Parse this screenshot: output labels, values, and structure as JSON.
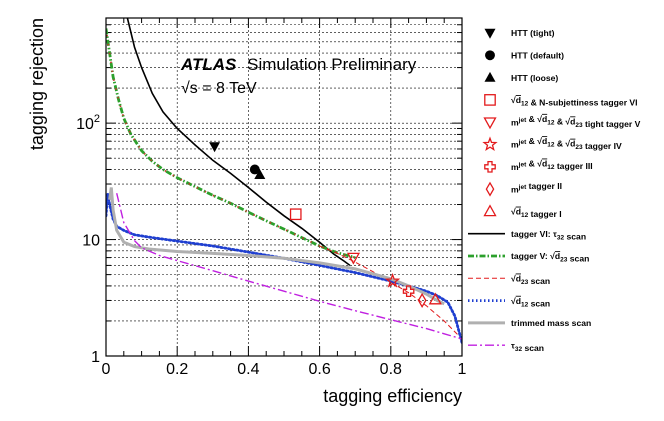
{
  "chart_data": {
    "type": "line",
    "title": "ATLAS Simulation Preliminary",
    "atlas_label": "ATLAS",
    "subtitle_rest": "Simulation Preliminary",
    "energy_label": "√s = 8 TeV",
    "xlabel": "tagging efficiency",
    "ylabel": "tagging rejection",
    "xlim": [
      0,
      1
    ],
    "ylim": [
      1,
      800
    ],
    "yscale": "log",
    "grid": true,
    "legend_position": "right",
    "x_tick_labels": [
      "0",
      "0.2",
      "0.4",
      "0.6",
      "0.8",
      "1"
    ],
    "y_tick_labels": [
      "1",
      "10",
      "10²"
    ],
    "markers": [
      {
        "name": "HTT (tight)",
        "symbol": "triangle-down",
        "filled": true,
        "color": "#000000",
        "x": 0.305,
        "y": 63
      },
      {
        "name": "HTT (default)",
        "symbol": "circle",
        "filled": true,
        "color": "#000000",
        "x": 0.418,
        "y": 40
      },
      {
        "name": "HTT (loose)",
        "symbol": "triangle-up",
        "filled": true,
        "color": "#000000",
        "x": 0.432,
        "y": 36
      },
      {
        "name": "√d12 & N-subjettiness tagger VI",
        "symbol": "square",
        "filled": false,
        "color": "#e31a1c",
        "x": 0.533,
        "y": 16.5
      },
      {
        "name": "m^jet & √d12 & √d23 tight tagger V",
        "symbol": "triangle-down",
        "filled": false,
        "color": "#e31a1c",
        "x": 0.695,
        "y": 7
      },
      {
        "name": "m^jet & √d12 & √d23 tagger IV",
        "symbol": "star",
        "filled": false,
        "color": "#e31a1c",
        "x": 0.805,
        "y": 4.4
      },
      {
        "name": "m^jet & √d12 tagger III",
        "symbol": "cross",
        "filled": false,
        "color": "#e31a1c",
        "x": 0.85,
        "y": 3.6
      },
      {
        "name": "m^jet tagger II",
        "symbol": "diamond",
        "filled": false,
        "color": "#e31a1c",
        "x": 0.888,
        "y": 3.0
      },
      {
        "name": "√d12 tagger I",
        "symbol": "triangle-up",
        "filled": false,
        "color": "#e31a1c",
        "x": 0.925,
        "y": 3.05
      }
    ],
    "series": [
      {
        "name": "tagger VI: τ32 scan",
        "color": "#000000",
        "style": "solid",
        "width": 1.6,
        "x": [
          0.06,
          0.08,
          0.1,
          0.13,
          0.16,
          0.2,
          0.25,
          0.3,
          0.35,
          0.4,
          0.45,
          0.5,
          0.55,
          0.6,
          0.64,
          0.67,
          0.685
        ],
        "y": [
          800,
          450,
          300,
          180,
          125,
          90,
          65,
          48,
          37,
          28,
          21,
          16,
          12.5,
          9.5,
          7.5,
          6.5,
          6
        ]
      },
      {
        "name": "tagger V: √d23 scan",
        "color": "#2ca02c",
        "style": "dashdot-red-green",
        "width": 2.8,
        "x": [
          0.0,
          0.01,
          0.02,
          0.035,
          0.05,
          0.07,
          0.1,
          0.13,
          0.16,
          0.2,
          0.25,
          0.3,
          0.35,
          0.4,
          0.45,
          0.5,
          0.55,
          0.6,
          0.65,
          0.7
        ],
        "y": [
          650,
          400,
          250,
          160,
          110,
          80,
          58,
          47,
          40,
          34,
          28.5,
          24,
          20.5,
          17.2,
          14.5,
          12.3,
          10.4,
          8.8,
          7.7,
          7
        ]
      },
      {
        "name": "√d23 scan",
        "color": "#e31a1c",
        "style": "dashed",
        "width": 1.0,
        "x": [
          0.6,
          0.65,
          0.7,
          0.75,
          0.8,
          0.85,
          0.9,
          0.95,
          1.0
        ],
        "y": [
          8.8,
          7.6,
          6.4,
          5.3,
          4.3,
          3.5,
          2.7,
          2.0,
          1.4
        ]
      },
      {
        "name": "√d12 scan",
        "color": "#1f3fd0",
        "style": "dotted",
        "width": 2.8,
        "x": [
          0.0,
          0.005,
          0.01,
          0.02,
          0.03,
          0.05,
          0.08,
          0.12,
          0.2,
          0.3,
          0.4,
          0.5,
          0.6,
          0.7,
          0.8,
          0.85,
          0.9,
          0.93,
          0.96,
          0.98,
          1.0
        ],
        "y": [
          16,
          25,
          20,
          15,
          13,
          12,
          11,
          10.5,
          9.7,
          8.8,
          7.8,
          6.9,
          6.0,
          5.2,
          4.4,
          4.0,
          3.6,
          3.3,
          2.9,
          2.2,
          1.3
        ]
      },
      {
        "name": "trimmed mass scan",
        "color": "#b0b0b0",
        "style": "solid",
        "width": 3.0,
        "x": [
          0.01,
          0.015,
          0.02,
          0.03,
          0.05,
          0.08,
          0.12,
          0.2,
          0.3,
          0.4,
          0.5,
          0.6,
          0.7,
          0.8,
          0.85,
          0.9,
          0.93,
          0.95
        ],
        "y": [
          22,
          28,
          18,
          12,
          9.5,
          8.7,
          8.3,
          7.9,
          7.6,
          7.3,
          6.9,
          6.3,
          5.6,
          4.6,
          4.0,
          3.4,
          3.0,
          2.8
        ]
      },
      {
        "name": "τ32 scan",
        "color": "#c020e0",
        "style": "dashdot",
        "width": 1.4,
        "x": [
          0.03,
          0.05,
          0.08,
          0.1,
          0.15,
          0.2,
          0.3,
          0.4,
          0.5,
          0.6,
          0.7,
          0.8,
          0.9,
          0.95,
          1.0
        ],
        "y": [
          25,
          14,
          9.8,
          8.5,
          7.3,
          6.6,
          5.4,
          4.4,
          3.6,
          2.95,
          2.45,
          2.05,
          1.72,
          1.55,
          1.4
        ]
      }
    ]
  }
}
